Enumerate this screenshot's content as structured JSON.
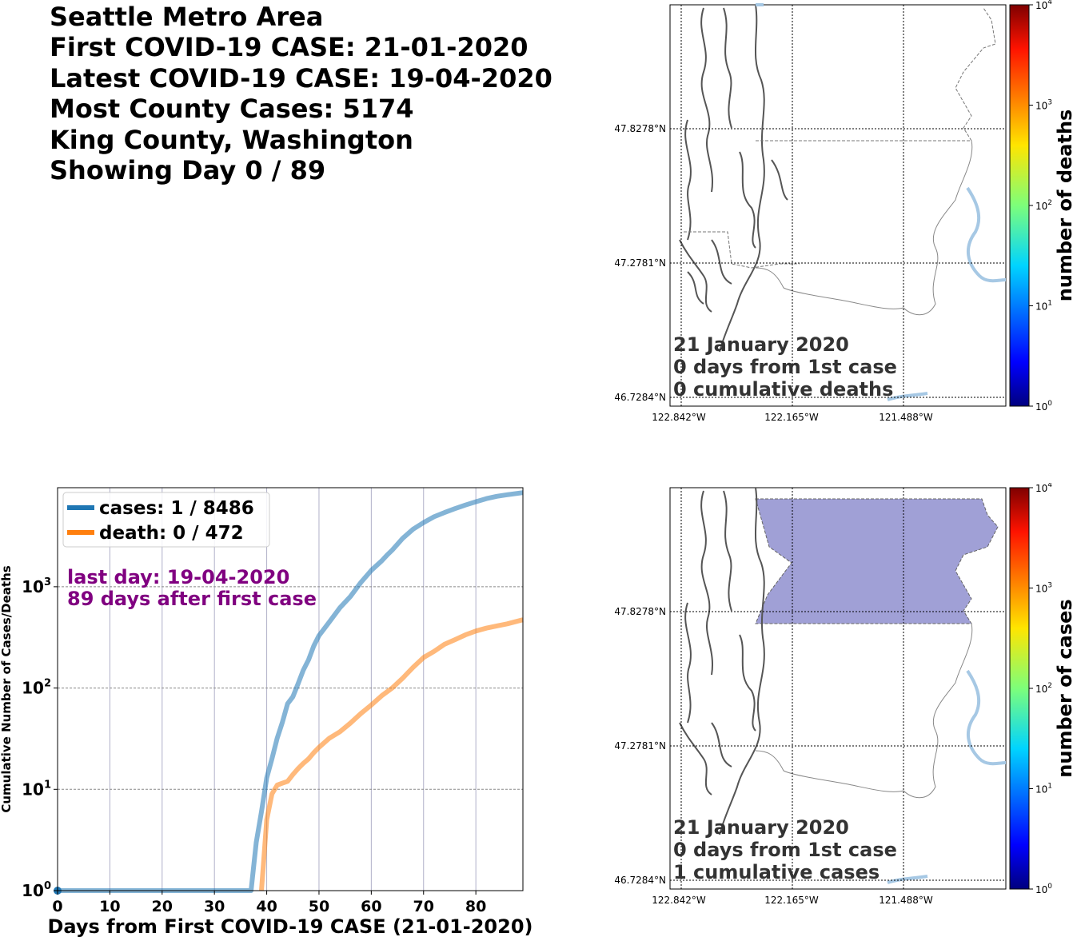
{
  "header": {
    "lines": [
      "Seattle Metro Area",
      "First COVID-19 CASE: 21-01-2020",
      "Latest COVID-19 CASE: 19-04-2020",
      "Most County Cases: 5174",
      "King County, Washington",
      "Showing Day 0 / 89"
    ]
  },
  "colors": {
    "cases_line": "#1f77b4",
    "death_line": "#ff7f0e",
    "annotation": "#800080",
    "county_fill": "#8080c8",
    "water": "#a6c8e4"
  },
  "maps": [
    {
      "id": "deaths-map",
      "lat_labels": [
        "47.8278°N",
        "47.2781°N",
        "46.7284°N"
      ],
      "lon_labels": [
        "122.842°W",
        "122.165°W",
        "121.488°W"
      ],
      "info_lines": [
        "21 January 2020",
        "0 days from 1st case",
        "0 cumulative deaths"
      ],
      "colorbar": {
        "label": "number of deaths",
        "ticks": [
          {
            "base": "10",
            "exp": "0"
          },
          {
            "base": "10",
            "exp": "1"
          },
          {
            "base": "10",
            "exp": "2"
          },
          {
            "base": "10",
            "exp": "3"
          },
          {
            "base": "10",
            "exp": "4"
          }
        ]
      }
    },
    {
      "id": "cases-map",
      "lat_labels": [
        "47.8278°N",
        "47.2781°N",
        "46.7284°N"
      ],
      "lon_labels": [
        "122.842°W",
        "122.165°W",
        "121.488°W"
      ],
      "info_lines": [
        "21 January 2020",
        "0 days from 1st case",
        "1 cumulative cases"
      ],
      "colorbar": {
        "label": "number of cases",
        "ticks": [
          {
            "base": "10",
            "exp": "0"
          },
          {
            "base": "10",
            "exp": "1"
          },
          {
            "base": "10",
            "exp": "2"
          },
          {
            "base": "10",
            "exp": "3"
          },
          {
            "base": "10",
            "exp": "4"
          }
        ]
      }
    }
  ],
  "chart_data": {
    "type": "line",
    "xlabel": "Days from First COVID-19 CASE (21-01-2020)",
    "ylabel": "Cumulative Number of Cases/Deaths",
    "xlim": [
      0,
      89
    ],
    "ylim": [
      1,
      9500
    ],
    "yscale": "log",
    "grid": true,
    "legend_position": "top-left",
    "x_ticks": [
      0,
      10,
      20,
      30,
      40,
      50,
      60,
      70,
      80
    ],
    "y_ticks": [
      {
        "value": 1,
        "base": "10",
        "exp": "0"
      },
      {
        "value": 10,
        "base": "10",
        "exp": "1"
      },
      {
        "value": 100,
        "base": "10",
        "exp": "2"
      },
      {
        "value": 1000,
        "base": "10",
        "exp": "3"
      }
    ],
    "legend": [
      "cases: 1 / 8486",
      "death: 0 / 472"
    ],
    "annotation": [
      "last day: 19-04-2020",
      "89 days after first case"
    ],
    "series": [
      {
        "name": "cases",
        "x": [
          0,
          37,
          38,
          39,
          40,
          41,
          42,
          43,
          44,
          45,
          46,
          47,
          48,
          49,
          50,
          52,
          54,
          56,
          58,
          60,
          62,
          63,
          64,
          66,
          68,
          70,
          72,
          74,
          76,
          78,
          80,
          82,
          84,
          86,
          89
        ],
        "y": [
          1,
          1,
          3,
          6,
          13,
          20,
          32,
          46,
          70,
          82,
          110,
          150,
          190,
          260,
          330,
          450,
          620,
          800,
          1100,
          1450,
          1800,
          2050,
          2300,
          3000,
          3700,
          4300,
          4900,
          5400,
          5900,
          6400,
          6900,
          7400,
          7800,
          8100,
          8486
        ]
      },
      {
        "name": "death",
        "x": [
          39,
          40,
          41,
          42,
          43,
          44,
          45,
          46,
          47,
          48,
          49,
          50,
          52,
          54,
          56,
          58,
          60,
          62,
          64,
          66,
          68,
          70,
          72,
          74,
          76,
          78,
          80,
          82,
          84,
          86,
          89
        ],
        "y": [
          1,
          5,
          9,
          11,
          11.5,
          12,
          14,
          16,
          18,
          20,
          23,
          26,
          32,
          37,
          45,
          56,
          68,
          84,
          100,
          125,
          160,
          200,
          230,
          270,
          300,
          335,
          365,
          390,
          410,
          430,
          472
        ]
      }
    ]
  }
}
